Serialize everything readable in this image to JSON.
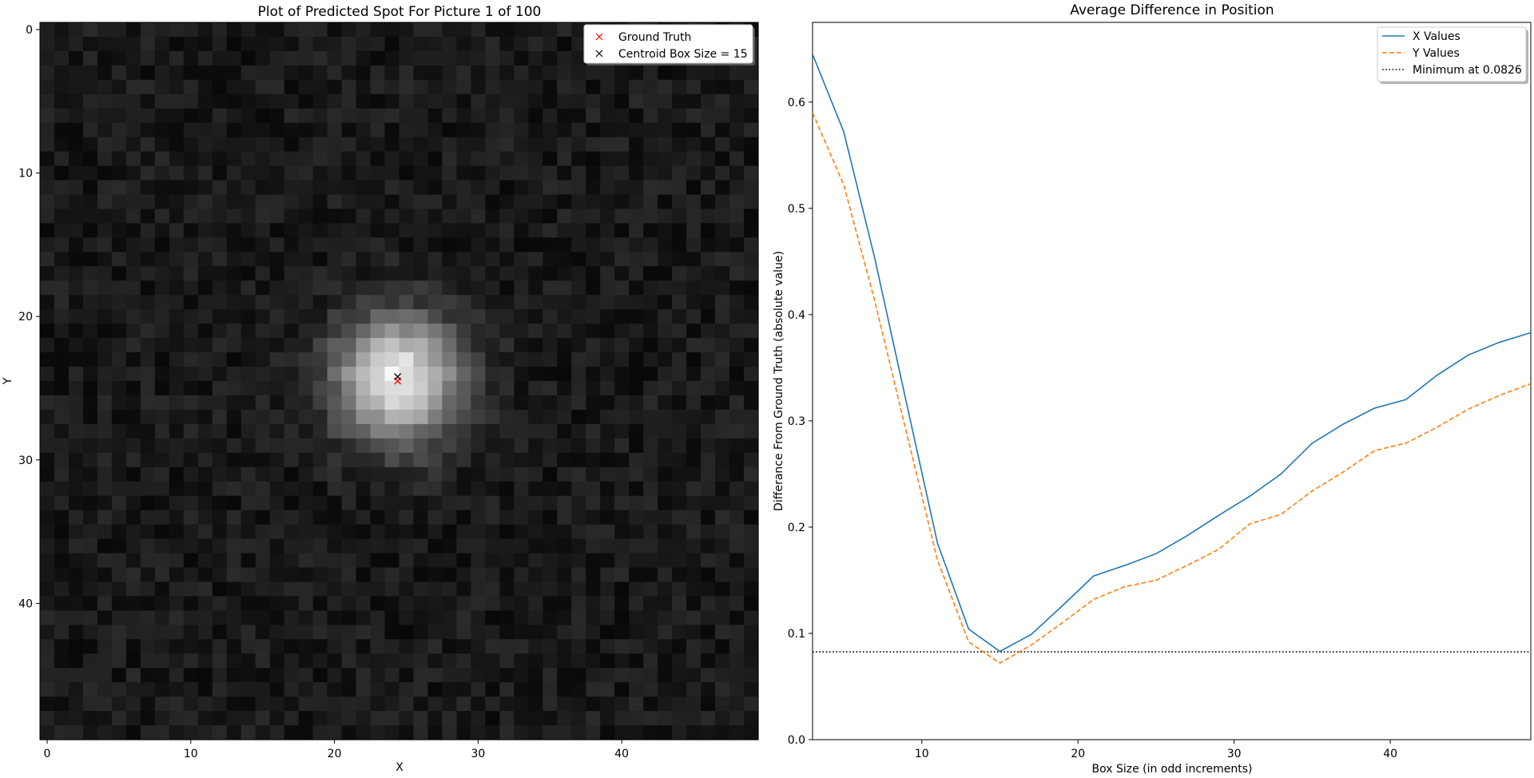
{
  "chart_data": [
    {
      "type": "heatmap",
      "title": "Plot of Predicted Spot For Picture 1 of 100",
      "xlabel": "X",
      "ylabel": "Y",
      "grid_size": 50,
      "xlim": [
        -0.5,
        49.5
      ],
      "ylim": [
        49.5,
        -0.5
      ],
      "x_ticks": [
        0,
        10,
        20,
        30,
        40
      ],
      "y_ticks": [
        0,
        10,
        20,
        30,
        40
      ],
      "colormap": "gray",
      "spot": {
        "center_x": 24.4,
        "center_y": 24.4,
        "sigma": 3.0
      },
      "points": [
        {
          "label": "Ground Truth",
          "x": 24.4,
          "y": 24.5,
          "color": "#ff0000",
          "marker": "x"
        },
        {
          "label": "Centroid Box Size = 15",
          "x": 24.4,
          "y": 24.2,
          "color": "#000000",
          "marker": "x"
        }
      ],
      "legend_position": "upper right"
    },
    {
      "type": "line",
      "title": "Average Difference in Position",
      "xlabel": "Box Size (in odd increments)",
      "ylabel": "Differance From Ground Truth (absolute value)",
      "xlim": [
        3,
        49
      ],
      "ylim": [
        0,
        0.675
      ],
      "x_ticks": [
        10,
        20,
        30,
        40
      ],
      "y_ticks": [
        0.0,
        0.1,
        0.2,
        0.3,
        0.4,
        0.5,
        0.6
      ],
      "x": [
        3,
        5,
        7,
        9,
        11,
        13,
        15,
        17,
        19,
        21,
        23,
        25,
        27,
        29,
        31,
        33,
        35,
        37,
        39,
        41,
        43,
        45,
        47,
        49
      ],
      "series": [
        {
          "name": "X Values",
          "color": "#1f77b4",
          "style": "solid",
          "values": [
            0.645,
            0.572,
            0.452,
            0.318,
            0.185,
            0.104,
            0.083,
            0.099,
            0.126,
            0.154,
            0.164,
            0.175,
            0.192,
            0.211,
            0.229,
            0.25,
            0.279,
            0.297,
            0.312,
            0.32,
            0.343,
            0.362,
            0.374,
            0.383
          ]
        },
        {
          "name": "Y Values",
          "color": "#ff7f0e",
          "style": "dashed",
          "values": [
            0.59,
            0.522,
            0.412,
            0.29,
            0.169,
            0.092,
            0.072,
            0.089,
            0.11,
            0.132,
            0.144,
            0.15,
            0.164,
            0.179,
            0.203,
            0.212,
            0.234,
            0.252,
            0.272,
            0.279,
            0.294,
            0.311,
            0.324,
            0.335
          ]
        }
      ],
      "hline": {
        "label": "Minimum at 0.0826",
        "y": 0.0826,
        "color": "#000000",
        "style": "dotted"
      },
      "legend_position": "upper right"
    }
  ]
}
